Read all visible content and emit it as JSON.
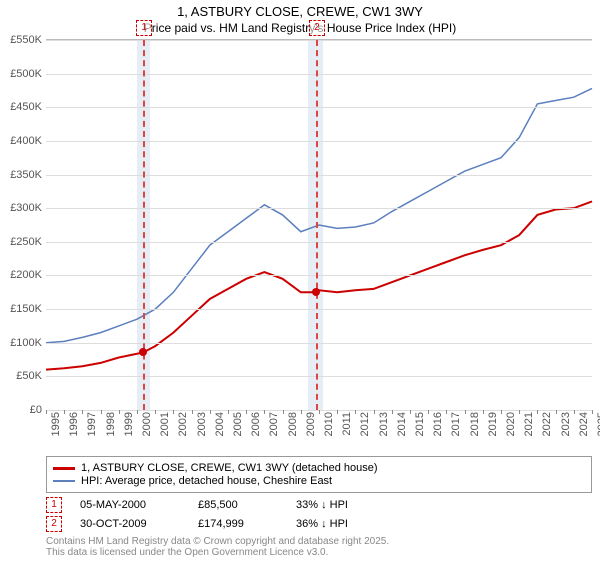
{
  "title": "1, ASTBURY CLOSE, CREWE, CW1 3WY",
  "subtitle": "Price paid vs. HM Land Registry's House Price Index (HPI)",
  "chart": {
    "type": "line",
    "background_color": "#ffffff",
    "grid_color": "#dddddd",
    "x": {
      "min": 1995,
      "max": 2025,
      "step": 1
    },
    "y": {
      "min": 0,
      "max": 550000,
      "step": 50000,
      "prefix": "£",
      "suffix": "K",
      "divisor": 1000
    },
    "plot_bands": [
      {
        "from": 2000.0,
        "to": 2000.7,
        "color": "#e7edf5"
      },
      {
        "from": 2009.4,
        "to": 2010.2,
        "color": "#e7edf5"
      }
    ],
    "markers": [
      {
        "n": "1",
        "x": 2000.34,
        "y": 85500,
        "date": "05-MAY-2000",
        "price": "£85,500",
        "delta": "33% ↓ HPI"
      },
      {
        "n": "2",
        "x": 2009.83,
        "y": 174999,
        "date": "30-OCT-2009",
        "price": "£174,999",
        "delta": "36% ↓ HPI"
      }
    ],
    "series": [
      {
        "name": "1, ASTBURY CLOSE, CREWE, CW1 3WY (detached house)",
        "color": "#cc0000",
        "width": 2,
        "points": [
          [
            1995,
            60000
          ],
          [
            1996,
            62000
          ],
          [
            1997,
            65000
          ],
          [
            1998,
            70000
          ],
          [
            1999,
            78000
          ],
          [
            2000.34,
            85500
          ],
          [
            2001,
            95000
          ],
          [
            2002,
            115000
          ],
          [
            2003,
            140000
          ],
          [
            2004,
            165000
          ],
          [
            2005,
            180000
          ],
          [
            2006,
            195000
          ],
          [
            2007,
            205000
          ],
          [
            2008,
            195000
          ],
          [
            2009,
            175000
          ],
          [
            2009.83,
            174999
          ],
          [
            2010,
            178000
          ],
          [
            2011,
            175000
          ],
          [
            2012,
            178000
          ],
          [
            2013,
            180000
          ],
          [
            2014,
            190000
          ],
          [
            2015,
            200000
          ],
          [
            2016,
            210000
          ],
          [
            2017,
            220000
          ],
          [
            2018,
            230000
          ],
          [
            2019,
            238000
          ],
          [
            2020,
            245000
          ],
          [
            2021,
            260000
          ],
          [
            2022,
            290000
          ],
          [
            2023,
            298000
          ],
          [
            2024,
            300000
          ],
          [
            2025,
            310000
          ]
        ]
      },
      {
        "name": "HPI: Average price, detached house, Cheshire East",
        "color": "#5b7fbf",
        "width": 1.5,
        "points": [
          [
            1995,
            100000
          ],
          [
            1996,
            102000
          ],
          [
            1997,
            108000
          ],
          [
            1998,
            115000
          ],
          [
            1999,
            125000
          ],
          [
            2000,
            135000
          ],
          [
            2001,
            150000
          ],
          [
            2002,
            175000
          ],
          [
            2003,
            210000
          ],
          [
            2004,
            245000
          ],
          [
            2005,
            265000
          ],
          [
            2006,
            285000
          ],
          [
            2007,
            305000
          ],
          [
            2008,
            290000
          ],
          [
            2009,
            265000
          ],
          [
            2010,
            275000
          ],
          [
            2011,
            270000
          ],
          [
            2012,
            272000
          ],
          [
            2013,
            278000
          ],
          [
            2014,
            295000
          ],
          [
            2015,
            310000
          ],
          [
            2016,
            325000
          ],
          [
            2017,
            340000
          ],
          [
            2018,
            355000
          ],
          [
            2019,
            365000
          ],
          [
            2020,
            375000
          ],
          [
            2021,
            405000
          ],
          [
            2022,
            455000
          ],
          [
            2023,
            460000
          ],
          [
            2024,
            465000
          ],
          [
            2025,
            478000
          ]
        ]
      }
    ]
  },
  "legend": {
    "items": [
      {
        "color": "#cc0000",
        "label": "1, ASTBURY CLOSE, CREWE, CW1 3WY (detached house)"
      },
      {
        "color": "#5b7fbf",
        "label": "HPI: Average price, detached house, Cheshire East"
      }
    ]
  },
  "footer": {
    "line1": "Contains HM Land Registry data © Crown copyright and database right 2025.",
    "line2": "This data is licensed under the Open Government Licence v3.0."
  }
}
